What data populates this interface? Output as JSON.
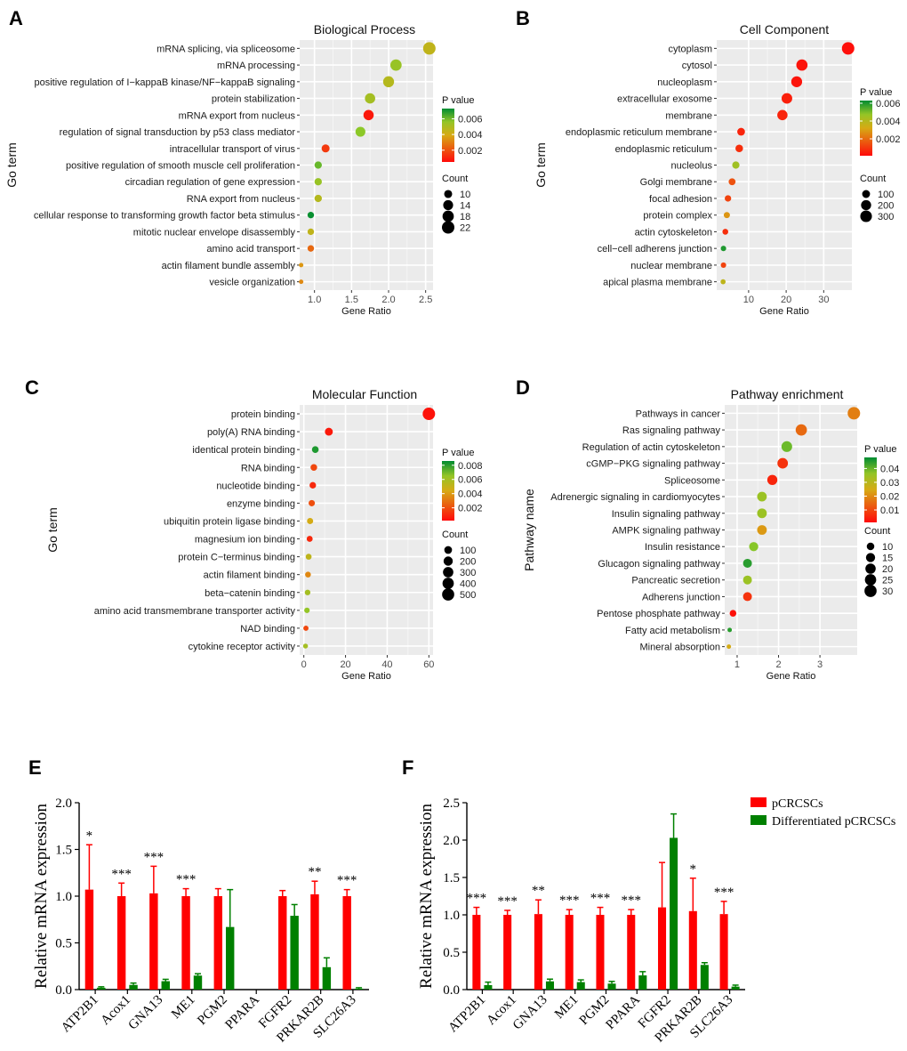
{
  "panel_letters": [
    "A",
    "B",
    "C",
    "D",
    "E",
    "F"
  ],
  "chart_data": [
    {
      "id": "A",
      "type": "scatter",
      "title": "Biological Process",
      "xlabel": "Gene Ratio",
      "ylabel": "Go term",
      "xlim": [
        0.8,
        2.6
      ],
      "xticks": [
        1.0,
        1.5,
        2.0,
        2.5
      ],
      "xtick_labels": [
        "1.0",
        "1.5",
        "2.0",
        "2.5"
      ],
      "terms": [
        "mRNA splicing, via spliceosome",
        "mRNA processing",
        "positive regulation of I−kappaB kinase/NF−kappaB signaling",
        "protein stabilization",
        "mRNA export from nucleus",
        "regulation of signal transduction by p53 class mediator",
        "intracellular transport of virus",
        "positive regulation of smooth muscle cell proliferation",
        "circadian regulation of gene expression",
        "RNA export from nucleus",
        "cellular response to transforming growth factor beta stimulus",
        "mitotic nuclear envelope disassembly",
        "amino acid transport",
        "actin filament bundle assembly",
        "vesicle organization"
      ],
      "gene_ratio": [
        2.55,
        2.1,
        2.0,
        1.75,
        1.73,
        1.62,
        1.15,
        1.05,
        1.05,
        1.05,
        0.95,
        0.95,
        0.95,
        0.82,
        0.82
      ],
      "count": [
        22,
        18,
        17,
        15,
        15,
        14,
        10,
        9,
        9,
        9,
        8,
        8,
        8,
        7,
        7
      ],
      "p_value": [
        0.0045,
        0.0055,
        0.0048,
        0.0052,
        0.0008,
        0.0058,
        0.0015,
        0.0062,
        0.0055,
        0.0048,
        0.0072,
        0.0045,
        0.0025,
        0.0035,
        0.0032
      ],
      "color_legend": {
        "title": "P value",
        "ticks": [
          0.002,
          0.004,
          0.006
        ],
        "tick_labels": [
          "0.002",
          "0.004",
          "0.006"
        ],
        "range": [
          0.0005,
          0.0073
        ]
      },
      "size_legend": {
        "title": "Count",
        "values": [
          10,
          14,
          18,
          22
        ],
        "labels": [
          "10",
          "14",
          "18",
          "22"
        ],
        "range": [
          7,
          22
        ]
      }
    },
    {
      "id": "B",
      "type": "scatter",
      "title": "Cell Component",
      "xlabel": "Gene Ratio",
      "ylabel": "Go term",
      "xlim": [
        1.5,
        37.5
      ],
      "xticks": [
        10,
        20,
        30
      ],
      "xtick_labels": [
        "10",
        "20",
        "30"
      ],
      "terms": [
        "cytoplasm",
        "cytosol",
        "nucleoplasm",
        "extracellular exosome",
        "membrane",
        "endoplasmic reticulum membrane",
        "endoplasmic reticulum",
        "nucleolus",
        "Golgi membrane",
        "focal adhesion",
        "protein complex",
        "actin cytoskeleton",
        "cell−cell adherens junction",
        "nuclear membrane",
        "apical plasma membrane"
      ],
      "gene_ratio": [
        36.5,
        24.2,
        22.8,
        20.2,
        19.0,
        8.0,
        7.5,
        6.6,
        5.6,
        4.5,
        4.2,
        3.8,
        3.3,
        3.3,
        3.2
      ],
      "count": [
        360,
        270,
        250,
        230,
        210,
        95,
        90,
        80,
        70,
        60,
        55,
        50,
        45,
        45,
        42
      ],
      "p_value": [
        0.0002,
        0.0003,
        0.0003,
        0.0005,
        0.0006,
        0.0006,
        0.0008,
        0.0045,
        0.0015,
        0.0012,
        0.0028,
        0.0008,
        0.006,
        0.0012,
        0.0038
      ],
      "color_legend": {
        "title": "P value",
        "ticks": [
          0.002,
          0.004,
          0.006
        ],
        "tick_labels": [
          "0.002",
          "0.004",
          "0.006"
        ],
        "range": [
          0.0001,
          0.0063
        ]
      },
      "size_legend": {
        "title": "Count",
        "values": [
          100,
          200,
          300
        ],
        "labels": [
          "100",
          "200",
          "300"
        ],
        "range": [
          40,
          360
        ]
      }
    },
    {
      "id": "C",
      "type": "scatter",
      "title": "Molecular Function",
      "xlabel": "Gene Ratio",
      "ylabel": "Go term",
      "xlim": [
        -2,
        62
      ],
      "xticks": [
        0,
        20,
        40,
        60
      ],
      "xtick_labels": [
        "0",
        "20",
        "40",
        "60"
      ],
      "terms": [
        "protein binding",
        "poly(A) RNA binding",
        "identical protein binding",
        "RNA binding",
        "nucleotide binding",
        "enzyme binding",
        "ubiquitin protein ligase binding",
        "magnesium ion binding",
        "protein C−terminus binding",
        "actin filament binding",
        "beta−catenin binding",
        "amino acid transmembrane transporter activity",
        "NAD binding",
        "cytokine receptor activity"
      ],
      "gene_ratio": [
        60,
        12,
        5.5,
        4.8,
        4.3,
        3.8,
        3.0,
        2.8,
        2.3,
        2.0,
        1.8,
        1.5,
        1.0,
        0.8
      ],
      "count": [
        540,
        110,
        55,
        50,
        45,
        40,
        35,
        30,
        28,
        25,
        22,
        20,
        15,
        12
      ],
      "p_value": [
        0.0004,
        0.0006,
        0.0082,
        0.0018,
        0.001,
        0.002,
        0.0045,
        0.001,
        0.0052,
        0.0035,
        0.006,
        0.0065,
        0.0018,
        0.006
      ],
      "color_legend": {
        "title": "P value",
        "ticks": [
          0.002,
          0.004,
          0.006,
          0.008
        ],
        "tick_labels": [
          "0.002",
          "0.004",
          "0.006",
          "0.008"
        ],
        "range": [
          0.0002,
          0.0086
        ]
      },
      "size_legend": {
        "title": "Count",
        "values": [
          100,
          200,
          300,
          400,
          500
        ],
        "labels": [
          "100",
          "200",
          "300",
          "400",
          "500"
        ],
        "range": [
          10,
          540
        ]
      }
    },
    {
      "id": "D",
      "type": "scatter",
      "title": "Pathway enrichment",
      "xlabel": "Gene Ratio",
      "ylabel": "Pathway name",
      "xlim": [
        0.7,
        3.9
      ],
      "xticks": [
        1,
        2,
        3
      ],
      "xtick_labels": [
        "1",
        "2",
        "3"
      ],
      "terms": [
        "Pathways in cancer",
        "Ras signaling pathway",
        "Regulation of actin cytoskeleton",
        "cGMP−PKG signaling pathway",
        "Spliceosome",
        "Adrenergic signaling in cardiomyocytes",
        "Insulin signaling pathway",
        "AMPK signaling pathway",
        "Insulin resistance",
        "Glucagon signaling pathway",
        "Pancreatic secretion",
        "Adherens junction",
        "Pentose phosphate pathway",
        "Fatty acid metabolism",
        "Mineral absorption"
      ],
      "gene_ratio": [
        3.82,
        2.55,
        2.2,
        2.1,
        1.85,
        1.6,
        1.6,
        1.6,
        1.4,
        1.25,
        1.25,
        1.25,
        0.9,
        0.82,
        0.8
      ],
      "count": [
        32,
        25,
        22,
        21,
        19,
        17,
        17,
        17,
        15,
        14,
        14,
        14,
        8,
        6,
        6
      ],
      "p_value": [
        0.018,
        0.015,
        0.04,
        0.007,
        0.005,
        0.035,
        0.035,
        0.022,
        0.038,
        0.045,
        0.035,
        0.007,
        0.002,
        0.045,
        0.025
      ],
      "color_legend": {
        "title": "P value",
        "ticks": [
          0.01,
          0.02,
          0.03,
          0.04
        ],
        "tick_labels": [
          "0.01",
          "0.02",
          "0.03",
          "0.04"
        ],
        "range": [
          0.001,
          0.048
        ]
      },
      "size_legend": {
        "title": "Count",
        "values": [
          10,
          15,
          20,
          25,
          30
        ],
        "labels": [
          "10",
          "15",
          "20",
          "25",
          "30"
        ],
        "range": [
          6,
          32
        ]
      }
    },
    {
      "id": "E",
      "type": "bar",
      "title": "",
      "xlabel": "",
      "ylabel": "Relative mRNA expression",
      "ylim": [
        0,
        2.0
      ],
      "yticks": [
        0,
        0.5,
        1.0,
        1.5,
        2.0
      ],
      "ytick_labels": [
        "0.0",
        "0.5",
        "1.0",
        "1.5",
        "2.0"
      ],
      "categories": [
        "ATP2B1",
        "Acox1",
        "GNA13",
        "ME1",
        "PGM2",
        "PPARA",
        "FGFR2",
        "PRKAR2B",
        "SLC26A3"
      ],
      "series": [
        {
          "name": "pCRCSCs",
          "color": "#ff0000",
          "values": [
            1.07,
            1.0,
            1.03,
            1.0,
            1.0,
            null,
            1.0,
            1.02,
            1.0
          ],
          "errors": [
            0.48,
            0.14,
            0.29,
            0.08,
            0.08,
            null,
            0.06,
            0.14,
            0.07
          ]
        },
        {
          "name": "Differentiated pCRCSCs",
          "color": "#008000",
          "values": [
            0.02,
            0.05,
            0.09,
            0.15,
            0.67,
            null,
            0.79,
            0.24,
            0.01
          ],
          "errors": [
            0.01,
            0.02,
            0.02,
            0.02,
            0.4,
            null,
            0.12,
            0.1,
            0.01
          ]
        }
      ],
      "significance": [
        "*",
        "***",
        "***",
        "***",
        "",
        "",
        "",
        "**",
        "***"
      ]
    },
    {
      "id": "F",
      "type": "bar",
      "title": "",
      "xlabel": "",
      "ylabel": "Relative mRNA expression",
      "ylim": [
        0,
        2.5
      ],
      "yticks": [
        0,
        0.5,
        1.0,
        1.5,
        2.0,
        2.5
      ],
      "ytick_labels": [
        "0.0",
        "0.5",
        "1.0",
        "1.5",
        "2.0",
        "2.5"
      ],
      "categories": [
        "ATP2B1",
        "Acox1",
        "GNA13",
        "ME1",
        "PGM2",
        "PPARA",
        "FGFR2",
        "PRKAR2B",
        "SLC26A3"
      ],
      "series": [
        {
          "name": "pCRCSCs",
          "color": "#ff0000",
          "values": [
            1.0,
            1.0,
            1.01,
            1.0,
            1.0,
            1.0,
            1.1,
            1.05,
            1.01
          ],
          "errors": [
            0.1,
            0.06,
            0.19,
            0.07,
            0.1,
            0.07,
            0.6,
            0.44,
            0.17
          ]
        },
        {
          "name": "Differentiated pCRCSCs",
          "color": "#008000",
          "values": [
            0.06,
            null,
            0.11,
            0.1,
            0.08,
            0.19,
            2.03,
            0.33,
            0.04
          ],
          "errors": [
            0.04,
            null,
            0.03,
            0.03,
            0.03,
            0.05,
            0.32,
            0.03,
            0.02
          ]
        }
      ],
      "significance": [
        "***",
        "***",
        "**",
        "***",
        "***",
        "***",
        "",
        "*",
        "***"
      ],
      "legend": [
        "pCRCSCs",
        "Differentiated pCRCSCs"
      ]
    }
  ]
}
